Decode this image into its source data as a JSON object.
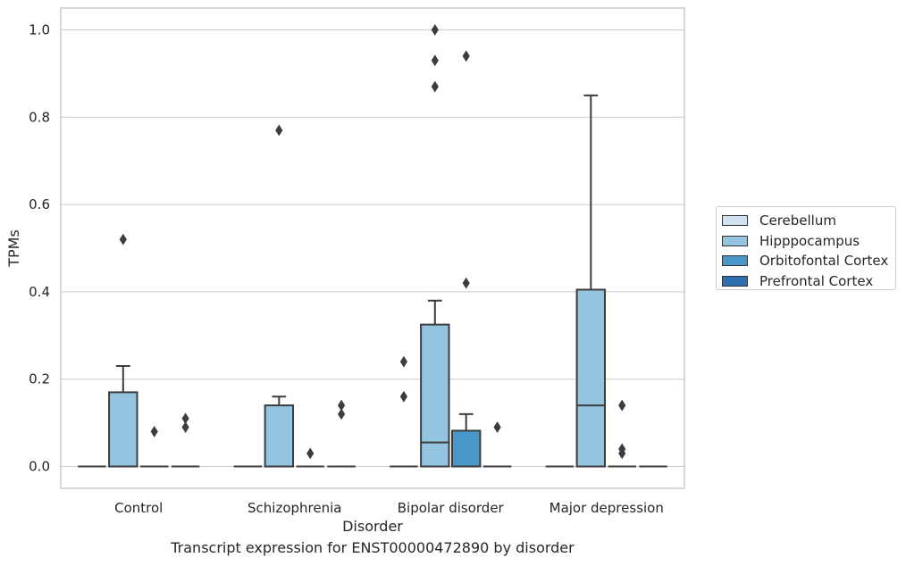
{
  "caption": "Transcript expression for ENST00000472890 by disorder",
  "chart_data": {
    "type": "box",
    "xlabel": "Disorder",
    "ylabel": "TPMs",
    "ylim": [
      -0.05,
      1.05
    ],
    "yticks": [
      0.0,
      0.2,
      0.4,
      0.6,
      0.8,
      1.0
    ],
    "ytick_labels": [
      "0.0",
      "0.2",
      "0.4",
      "0.6",
      "0.8",
      "1.0"
    ],
    "grid": true,
    "legend_position": "right",
    "categories": [
      "Control",
      "Schizophrenia",
      "Bipolar disorder",
      "Major depression"
    ],
    "series": [
      {
        "name": "Cerebellum",
        "color": "#d0e1f2",
        "boxes": [
          {
            "q1": 0,
            "median": 0,
            "q3": 0,
            "whislo": 0,
            "whishi": 0,
            "fliers": []
          },
          {
            "q1": 0,
            "median": 0,
            "q3": 0,
            "whislo": 0,
            "whishi": 0,
            "fliers": []
          },
          {
            "q1": 0,
            "median": 0,
            "q3": 0,
            "whislo": 0,
            "whishi": 0,
            "fliers": [
              0.24,
              0.16
            ]
          },
          {
            "q1": 0,
            "median": 0,
            "q3": 0,
            "whislo": 0,
            "whishi": 0,
            "fliers": []
          }
        ]
      },
      {
        "name": "Hipppocampus",
        "color": "#94c4df",
        "boxes": [
          {
            "q1": 0,
            "median": 0,
            "q3": 0.17,
            "whislo": 0,
            "whishi": 0.23,
            "fliers": [
              0.52
            ]
          },
          {
            "q1": 0,
            "median": 0,
            "q3": 0.14,
            "whislo": 0,
            "whishi": 0.16,
            "fliers": [
              0.77
            ]
          },
          {
            "q1": 0,
            "median": 0.055,
            "q3": 0.325,
            "whislo": 0,
            "whishi": 0.38,
            "fliers": [
              1.0,
              0.93,
              0.87
            ]
          },
          {
            "q1": 0,
            "median": 0.14,
            "q3": 0.405,
            "whislo": 0,
            "whishi": 0.85,
            "fliers": []
          }
        ]
      },
      {
        "name": "Orbitofontal Cortex",
        "color": "#4a98c9",
        "boxes": [
          {
            "q1": 0,
            "median": 0,
            "q3": 0,
            "whislo": 0,
            "whishi": 0,
            "fliers": [
              0.08
            ]
          },
          {
            "q1": 0,
            "median": 0,
            "q3": 0,
            "whislo": 0,
            "whishi": 0,
            "fliers": [
              0.03
            ]
          },
          {
            "q1": 0,
            "median": 0,
            "q3": 0.082,
            "whislo": 0,
            "whishi": 0.12,
            "fliers": [
              0.94,
              0.42
            ]
          },
          {
            "q1": 0,
            "median": 0,
            "q3": 0,
            "whislo": 0,
            "whishi": 0,
            "fliers": [
              0.14,
              0.04,
              0.03
            ]
          }
        ]
      },
      {
        "name": "Prefrontal Cortex",
        "color": "#2e6fb0",
        "boxes": [
          {
            "q1": 0,
            "median": 0,
            "q3": 0,
            "whislo": 0,
            "whishi": 0,
            "fliers": [
              0.11,
              0.09
            ]
          },
          {
            "q1": 0,
            "median": 0,
            "q3": 0,
            "whislo": 0,
            "whishi": 0,
            "fliers": [
              0.14,
              0.12
            ]
          },
          {
            "q1": 0,
            "median": 0,
            "q3": 0,
            "whislo": 0,
            "whishi": 0,
            "fliers": [
              0.09
            ]
          },
          {
            "q1": 0,
            "median": 0,
            "q3": 0,
            "whislo": 0,
            "whishi": 0,
            "fliers": []
          }
        ]
      }
    ]
  }
}
